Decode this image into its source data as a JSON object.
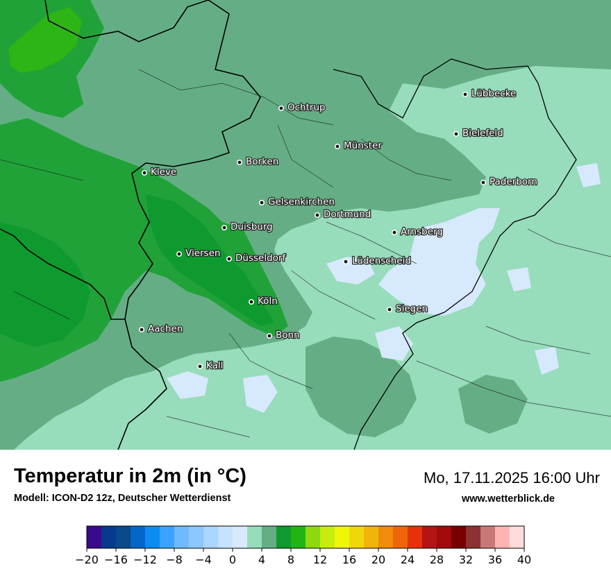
{
  "map": {
    "cities": [
      {
        "name": "Lübbecke"
      },
      {
        "name": "Ochtrup"
      },
      {
        "name": "Bielefeld"
      },
      {
        "name": "Münster"
      },
      {
        "name": "Kleve"
      },
      {
        "name": "Borken"
      },
      {
        "name": "Paderborn"
      },
      {
        "name": "Gelsenkirchen"
      },
      {
        "name": "Dortmund"
      },
      {
        "name": "Duisburg"
      },
      {
        "name": "Arnsberg"
      },
      {
        "name": "Viersen"
      },
      {
        "name": "Düsseldorf"
      },
      {
        "name": "Lüdenscheid"
      },
      {
        "name": "Köln"
      },
      {
        "name": "Siegen"
      },
      {
        "name": "Aachen"
      },
      {
        "name": "Bonn"
      },
      {
        "name": "Kall"
      }
    ],
    "fill_colors": {
      "range_6_8": "#20a238",
      "range_8_10": "#0e9a2f",
      "range_10_12": "#2cb514",
      "range_4_6": "#65ae85",
      "range_2_4": "#97dcbb",
      "range_0_2": "#d7e9fc",
      "border": "#000000",
      "district": "#1b1b1b"
    }
  },
  "header": {
    "title": "Temperatur in 2m (in °C)",
    "subtitle": "Modell: ICON-D2 12z, Deutscher Wetterdienst",
    "datetime": "Mo, 17.11.2025 16:00 Uhr",
    "source": "www.wetterblick.de"
  },
  "legend": {
    "min": -20,
    "max": 40,
    "step": 2,
    "colors": [
      "#3a0a8c",
      "#073a8c",
      "#0a4a8a",
      "#0466c8",
      "#0a8cf0",
      "#3aa2ff",
      "#6fbaff",
      "#8cc8ff",
      "#aad5ff",
      "#c6e2fd",
      "#d7e9fc",
      "#97dcbb",
      "#65ae85",
      "#0e9a2f",
      "#20b514",
      "#8ed80e",
      "#c8ec0e",
      "#f0f60a",
      "#f0d70a",
      "#f0b40a",
      "#f08c0a",
      "#f0640a",
      "#e6320a",
      "#b41414",
      "#a00a0a",
      "#780000",
      "#8c3232",
      "#c87878",
      "#ffb4b4",
      "#ffdcdc"
    ],
    "ticks": [
      "−20",
      "−16",
      "−12",
      "−8",
      "−4",
      "0",
      "4",
      "8",
      "12",
      "16",
      "20",
      "24",
      "28",
      "32",
      "36",
      "40"
    ]
  }
}
